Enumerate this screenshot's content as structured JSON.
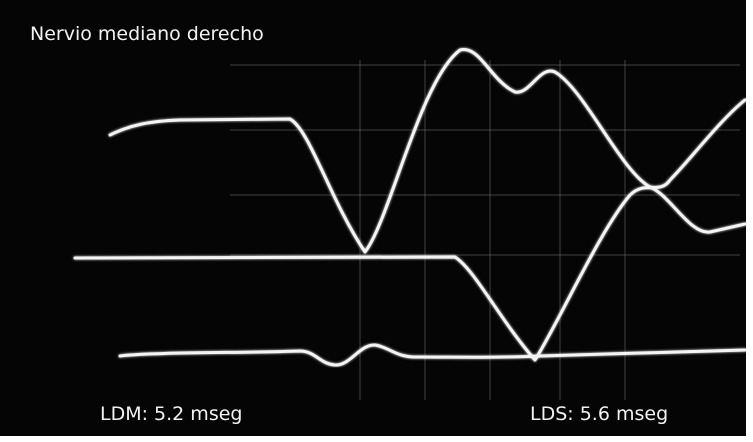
{
  "header": {
    "title": "Nervio mediano derecho"
  },
  "labels": [
    "LDM: 5.2 mseg",
    "LDS: 5.6 mseg"
  ]
}
